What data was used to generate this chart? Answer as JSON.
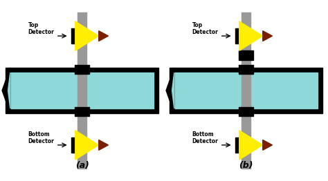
{
  "bg_color": "#ffffff",
  "pipe_color": "#8fd8d8",
  "pipe_border": "#000000",
  "valve_rod_color": "#999999",
  "valve_block_color": "#000000",
  "detector_yellow": "#ffee00",
  "detector_brown": "#7a2000",
  "detector_black": "#000000",
  "label_a": "(a)",
  "label_b": "(b)",
  "text_top": "Top\nDetector",
  "text_bottom": "Bottom\nDetector",
  "fig_width": 4.74,
  "fig_height": 2.62,
  "dpi": 100
}
